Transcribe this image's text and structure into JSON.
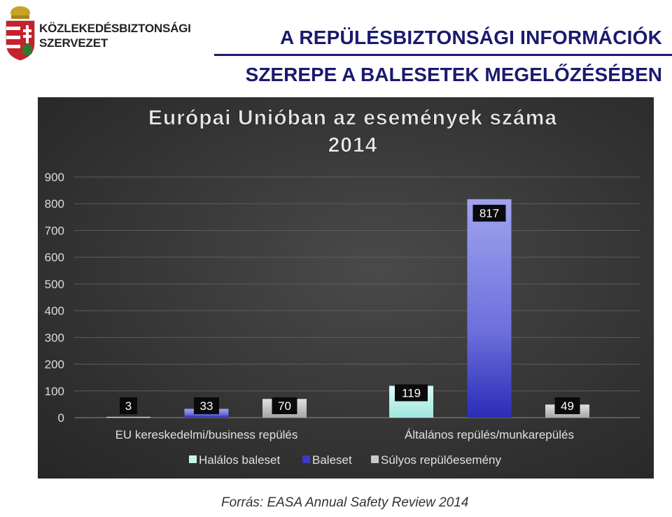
{
  "header": {
    "org_line1": "KÖZLEKEDÉSBIZTONSÁGI",
    "org_line2": "SZERVEZET",
    "title_line1": "A REPÜLÉSBIZTONSÁGI INFORMÁCIÓK",
    "title_line2": "SZEREPE A BALESETEK MEGELŐZÉSÉBEN"
  },
  "source": "Forrás: EASA Annual Safety Review 2014",
  "colors": {
    "title": "#1a1a6e",
    "halalos": "#c8f4ee",
    "baleset": "#3a3ac8",
    "sulyos": "#c8c8c8"
  },
  "chart_data": {
    "type": "bar",
    "title": "Európai Unióban az események száma",
    "subtitle": "2014",
    "categories": [
      "EU kereskedelmi/business repülés",
      "Általános repülés/munkarepülés"
    ],
    "series": [
      {
        "name": "Halálos baleset",
        "values": [
          3,
          119
        ]
      },
      {
        "name": "Baleset",
        "values": [
          33,
          817
        ]
      },
      {
        "name": "Súlyos repülőesemény",
        "values": [
          70,
          49
        ]
      }
    ],
    "ylim": [
      0,
      900
    ],
    "yticks": [
      "0",
      "100",
      "200",
      "300",
      "400",
      "500",
      "600",
      "700",
      "800",
      "900"
    ],
    "xlabel": "",
    "ylabel": "",
    "grid": true,
    "legend": "bottom"
  }
}
